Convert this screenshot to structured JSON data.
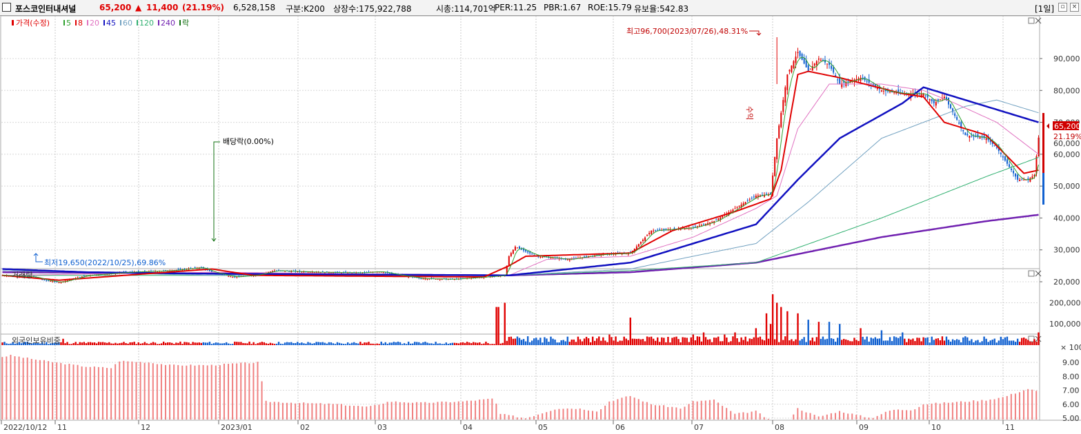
{
  "header": {
    "name": "포스코인터내셔널",
    "price": "65,200",
    "change_symbol": "▲",
    "change": "11,400",
    "change_pct": "(21.19%)",
    "volume": "6,528,158",
    "market": "구분:K200",
    "shares": "상장수:175,922,788",
    "mcap": "시총:114,701억",
    "per": "PER:11.25",
    "pbr": "PBR:1.67",
    "roe": "ROE:15.79",
    "float": "유보율:542.83",
    "period": "[1일]"
  },
  "legend": {
    "price": "가격(수정)",
    "ma": [
      {
        "label": "5",
        "color": "#2ca02c"
      },
      {
        "label": "8",
        "color": "#e00000"
      },
      {
        "label": "20",
        "color": "#e070c0"
      },
      {
        "label": "45",
        "color": "#1010c0"
      },
      {
        "label": "60",
        "color": "#70a0c0"
      },
      {
        "label": "120",
        "color": "#30b070"
      },
      {
        "label": "240",
        "color": "#7020b0"
      },
      {
        "label": "락",
        "color": "#107010"
      }
    ]
  },
  "annotations": {
    "high": "최고96,700(2023/07/26),48.31%",
    "low": "최저19,650(2022/10/25),69.86%",
    "dividend": "배당락(0.00%)",
    "exright_marker": "수익"
  },
  "price_badge": {
    "value": "65,200",
    "pct": "21.19%",
    "hidden_tick": "60,000"
  },
  "volume_panel": {
    "title": "거래량",
    "ticks": [
      "200,000",
      "100,000"
    ],
    "unit": "× 100"
  },
  "foreign_panel": {
    "title": "외국인보유비중",
    "ticks": [
      "9.00",
      "8.00",
      "7.00",
      "6.00",
      "5.00"
    ]
  },
  "date_axis": [
    "2022/10/12",
    "11",
    "12",
    "2023/01",
    "02",
    "03",
    "04",
    "05",
    "06",
    "07",
    "08",
    "09",
    "10",
    "11"
  ],
  "colors": {
    "up": "#e00000",
    "down": "#1060d0",
    "ma5": "#2ca02c",
    "ma8": "#e00000",
    "ma20": "#e070c0",
    "ma45": "#1010c0",
    "ma60": "#70a0c0",
    "ma120": "#30b070",
    "ma240": "#7020b0",
    "foreign": "#f08080"
  },
  "chart_data": [
    {
      "type": "candlestick",
      "title": "포스코인터내셔널 가격(수정)",
      "ylim": [
        15000,
        100000
      ],
      "yticks": [
        20000,
        30000,
        40000,
        50000,
        60000,
        70000,
        80000,
        90000
      ],
      "close_anchors": [
        [
          0,
          22000
        ],
        [
          15,
          21500
        ],
        [
          20,
          20500
        ],
        [
          27,
          19800
        ],
        [
          40,
          22000
        ],
        [
          60,
          23000
        ],
        [
          80,
          23500
        ],
        [
          95,
          24500
        ],
        [
          100,
          23000
        ],
        [
          110,
          21500
        ],
        [
          120,
          22000
        ],
        [
          130,
          23500
        ],
        [
          150,
          23000
        ],
        [
          170,
          22800
        ],
        [
          180,
          23200
        ],
        [
          190,
          22000
        ],
        [
          200,
          21000
        ],
        [
          215,
          20800
        ],
        [
          230,
          21500
        ],
        [
          240,
          22000
        ],
        [
          242,
          28000
        ],
        [
          245,
          31000
        ],
        [
          255,
          28000
        ],
        [
          270,
          27000
        ],
        [
          285,
          28500
        ],
        [
          300,
          29000
        ],
        [
          310,
          36000
        ],
        [
          330,
          37000
        ],
        [
          340,
          39000
        ],
        [
          350,
          43000
        ],
        [
          360,
          47000
        ],
        [
          367,
          47500
        ],
        [
          370,
          65000
        ],
        [
          375,
          85000
        ],
        [
          380,
          92000
        ],
        [
          385,
          86000
        ],
        [
          390,
          90000
        ],
        [
          395,
          88000
        ],
        [
          400,
          82000
        ],
        [
          410,
          84000
        ],
        [
          420,
          80000
        ],
        [
          430,
          79000
        ],
        [
          440,
          79000
        ],
        [
          445,
          76000
        ],
        [
          450,
          78000
        ],
        [
          455,
          72000
        ],
        [
          460,
          66000
        ],
        [
          470,
          65000
        ],
        [
          475,
          62000
        ],
        [
          480,
          57000
        ],
        [
          485,
          52000
        ],
        [
          490,
          52000
        ],
        [
          493,
          53500
        ],
        [
          495,
          65200
        ]
      ],
      "ma_anchors": {
        "ma8": [
          [
            0,
            22000
          ],
          [
            27,
            20500
          ],
          [
            100,
            24000
          ],
          [
            120,
            22000
          ],
          [
            230,
            21500
          ],
          [
            242,
            25000
          ],
          [
            250,
            28000
          ],
          [
            300,
            29000
          ],
          [
            320,
            36000
          ],
          [
            350,
            42000
          ],
          [
            367,
            46000
          ],
          [
            372,
            55000
          ],
          [
            380,
            85000
          ],
          [
            385,
            86000
          ],
          [
            400,
            84000
          ],
          [
            430,
            79000
          ],
          [
            440,
            78000
          ],
          [
            450,
            70000
          ],
          [
            470,
            66000
          ],
          [
            488,
            54000
          ],
          [
            495,
            55000
          ]
        ],
        "ma20": [
          [
            0,
            22000
          ],
          [
            100,
            23000
          ],
          [
            242,
            22000
          ],
          [
            260,
            27000
          ],
          [
            300,
            28000
          ],
          [
            330,
            34000
          ],
          [
            360,
            43000
          ],
          [
            370,
            47000
          ],
          [
            380,
            68000
          ],
          [
            395,
            82000
          ],
          [
            420,
            82000
          ],
          [
            440,
            80000
          ],
          [
            455,
            76000
          ],
          [
            475,
            70000
          ],
          [
            495,
            60000
          ]
        ],
        "ma45": [
          [
            0,
            24000
          ],
          [
            40,
            23000
          ],
          [
            100,
            22500
          ],
          [
            242,
            22000
          ],
          [
            300,
            26000
          ],
          [
            330,
            32000
          ],
          [
            360,
            38000
          ],
          [
            380,
            52000
          ],
          [
            400,
            65000
          ],
          [
            430,
            76000
          ],
          [
            440,
            81000
          ],
          [
            460,
            77000
          ],
          [
            480,
            73000
          ],
          [
            495,
            70000
          ]
        ],
        "ma60": [
          [
            0,
            23500
          ],
          [
            100,
            22000
          ],
          [
            242,
            22000
          ],
          [
            300,
            24000
          ],
          [
            360,
            32000
          ],
          [
            385,
            45000
          ],
          [
            420,
            65000
          ],
          [
            460,
            75000
          ],
          [
            475,
            77000
          ],
          [
            495,
            73000
          ]
        ],
        "ma120": [
          [
            0,
            22000
          ],
          [
            242,
            22000
          ],
          [
            300,
            23500
          ],
          [
            360,
            26000
          ],
          [
            420,
            40000
          ],
          [
            470,
            53000
          ],
          [
            495,
            59000
          ]
        ],
        "ma240": [
          [
            0,
            23000
          ],
          [
            242,
            22000
          ],
          [
            300,
            23000
          ],
          [
            360,
            26000
          ],
          [
            420,
            34000
          ],
          [
            470,
            39000
          ],
          [
            495,
            41000
          ]
        ]
      }
    },
    {
      "type": "bar",
      "title": "거래량",
      "unit": "× 100",
      "ylim": [
        0,
        260000
      ],
      "yticks": [
        100000,
        200000
      ],
      "spikes": [
        [
          29,
          30000
        ],
        [
          236,
          180000
        ],
        [
          237,
          180000
        ],
        [
          240,
          200000
        ],
        [
          243,
          40000
        ],
        [
          270,
          40000
        ],
        [
          275,
          40000
        ],
        [
          290,
          50000
        ],
        [
          300,
          130000
        ],
        [
          304,
          30000
        ],
        [
          310,
          40000
        ],
        [
          330,
          50000
        ],
        [
          335,
          60000
        ],
        [
          345,
          50000
        ],
        [
          350,
          60000
        ],
        [
          355,
          40000
        ],
        [
          360,
          80000
        ],
        [
          362,
          40000
        ],
        [
          365,
          150000
        ],
        [
          367,
          100000
        ],
        [
          368,
          240000
        ],
        [
          370,
          200000
        ],
        [
          372,
          180000
        ],
        [
          375,
          160000
        ],
        [
          380,
          150000
        ],
        [
          385,
          120000
        ],
        [
          390,
          110000
        ],
        [
          395,
          110000
        ],
        [
          400,
          100000
        ],
        [
          410,
          80000
        ],
        [
          420,
          70000
        ],
        [
          430,
          60000
        ],
        [
          470,
          30000
        ],
        [
          480,
          40000
        ],
        [
          495,
          60000
        ]
      ],
      "baseline": 12000
    },
    {
      "type": "bar",
      "title": "외국인보유비중",
      "ylim": [
        4.5,
        9.7
      ],
      "yticks": [
        5.0,
        6.0,
        7.0,
        8.0,
        9.0
      ],
      "anchors": [
        [
          0,
          9.4
        ],
        [
          4,
          9.5
        ],
        [
          12,
          9.3
        ],
        [
          25,
          9.0
        ],
        [
          40,
          8.7
        ],
        [
          52,
          8.6
        ],
        [
          56,
          9.1
        ],
        [
          70,
          9.0
        ],
        [
          80,
          8.8
        ],
        [
          100,
          8.8
        ],
        [
          110,
          8.9
        ],
        [
          122,
          9.0
        ],
        [
          126,
          6.2
        ],
        [
          140,
          6.1
        ],
        [
          160,
          6.0
        ],
        [
          175,
          5.8
        ],
        [
          185,
          6.2
        ],
        [
          200,
          6.1
        ],
        [
          220,
          6.2
        ],
        [
          235,
          6.4
        ],
        [
          238,
          5.3
        ],
        [
          250,
          5.0
        ],
        [
          265,
          5.7
        ],
        [
          275,
          5.7
        ],
        [
          285,
          5.5
        ],
        [
          290,
          6.2
        ],
        [
          300,
          6.6
        ],
        [
          310,
          6.0
        ],
        [
          325,
          5.7
        ],
        [
          330,
          6.2
        ],
        [
          340,
          6.3
        ],
        [
          350,
          5.3
        ],
        [
          360,
          5.5
        ],
        [
          367,
          4.8
        ],
        [
          375,
          4.7
        ],
        [
          380,
          5.7
        ],
        [
          390,
          5.1
        ],
        [
          400,
          5.5
        ],
        [
          415,
          5.0
        ],
        [
          425,
          5.6
        ],
        [
          435,
          5.6
        ],
        [
          440,
          6.0
        ],
        [
          450,
          6.1
        ],
        [
          460,
          6.2
        ],
        [
          470,
          6.3
        ],
        [
          478,
          6.5
        ],
        [
          490,
          7.1
        ],
        [
          495,
          6.9
        ]
      ]
    }
  ]
}
